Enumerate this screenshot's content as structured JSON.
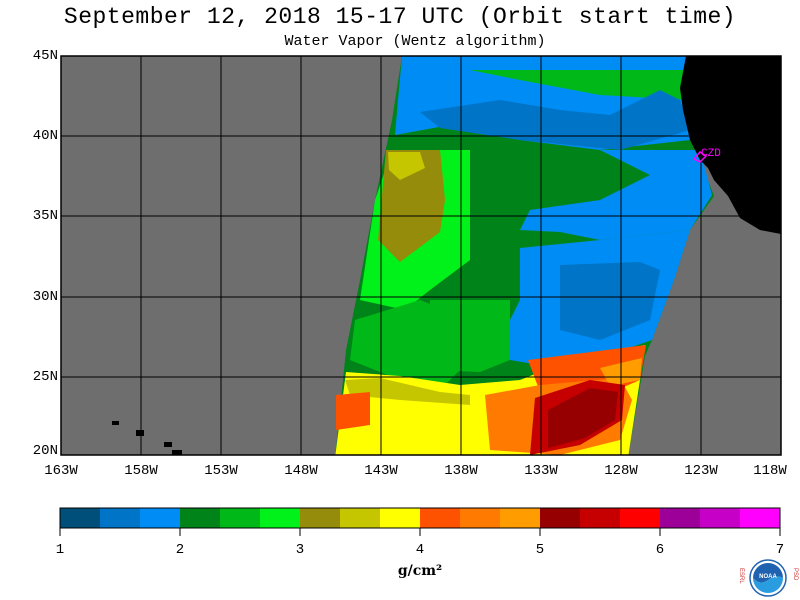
{
  "title": "September 12, 2018  15-17 UTC  (Orbit start time)",
  "subtitle": "Water Vapor (Wentz algorithm)",
  "lat_labels": [
    "45N",
    "40N",
    "35N",
    "30N",
    "25N",
    "20N"
  ],
  "lon_labels": [
    "163W",
    "158W",
    "153W",
    "148W",
    "143W",
    "138W",
    "133W",
    "128W",
    "123W",
    "118W"
  ],
  "station_label": "CZD",
  "colorbar": {
    "tick_labels": [
      "1",
      "2",
      "3",
      "4",
      "5",
      "6",
      "7"
    ],
    "units": "g/cm²",
    "colors": [
      "#004f7a",
      "#0074c6",
      "#008cf5",
      "#00841a",
      "#00b817",
      "#00f21a",
      "#948c0a",
      "#c6c600",
      "#ffff00",
      "#ff5200",
      "#ff7a00",
      "#ff9c00",
      "#960000",
      "#c60000",
      "#ff0000",
      "#9c0098",
      "#c600c6",
      "#ff00ff"
    ]
  },
  "colors": {
    "no_data": "#6e6e6e",
    "land": "#000000",
    "grid": "#000000",
    "station_marker": "#ff00ff"
  },
  "logo": {
    "left_letters": "ESRL",
    "right_letters": "PSD",
    "agency": "NOAA"
  }
}
